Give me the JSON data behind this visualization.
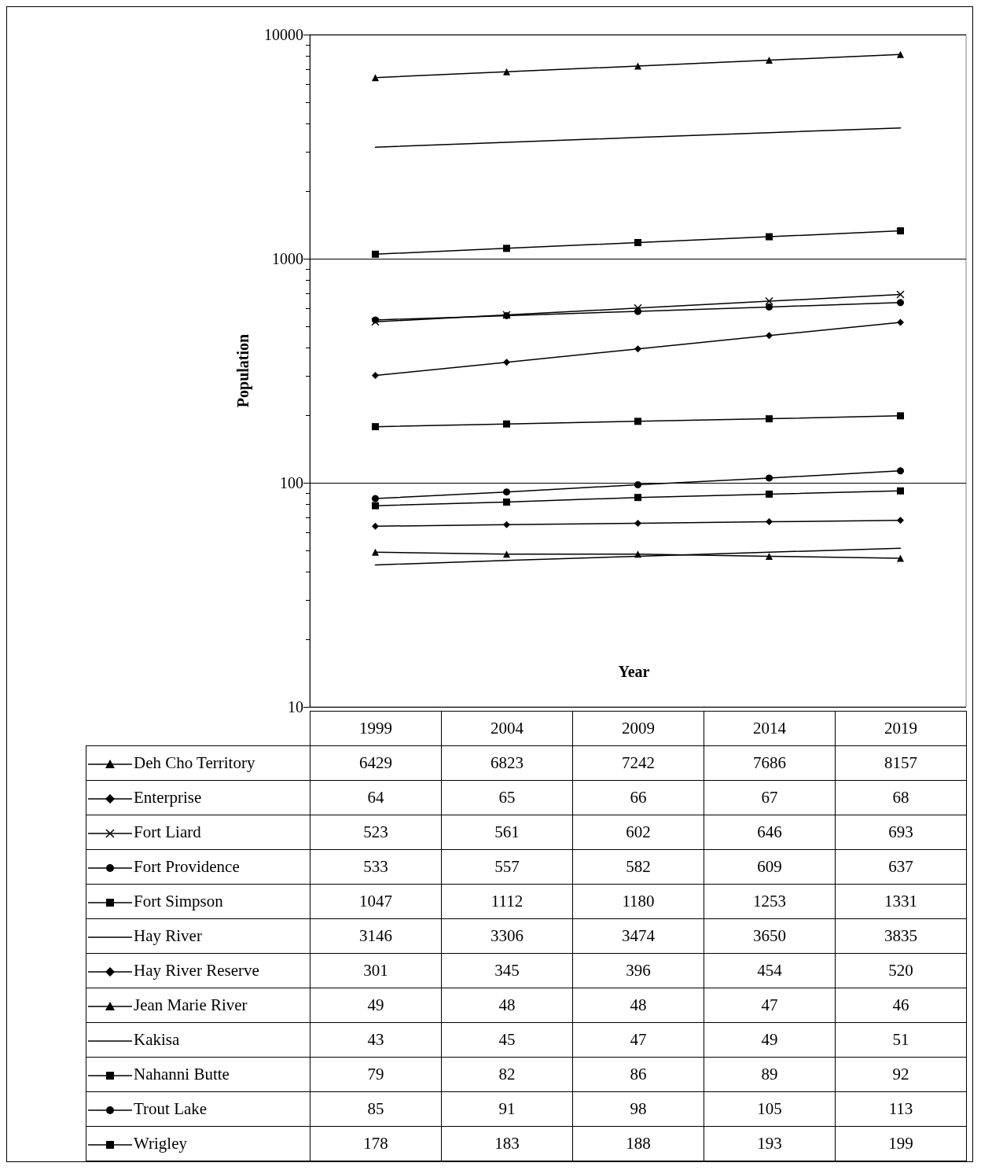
{
  "chart_data": {
    "type": "line",
    "xlabel": "Year",
    "ylabel": "Population",
    "categories": [
      "1999",
      "2004",
      "2009",
      "2014",
      "2019"
    ],
    "log": "y",
    "ylim": [
      10,
      10000
    ],
    "yticks": [
      10,
      100,
      1000,
      10000
    ],
    "grid": "y",
    "legend": "bottom",
    "data_labels": true,
    "series": [
      {
        "name": "Deh Cho Territory",
        "color": "#000000",
        "marker": "triangle",
        "values": [
          6429,
          6823,
          7242,
          7686,
          8157
        ]
      },
      {
        "name": "Enterprise",
        "color": "#000000",
        "marker": "diamond",
        "values": [
          64,
          65,
          66,
          67,
          68
        ]
      },
      {
        "name": "Fort Liard",
        "color": "#000000",
        "marker": "cross",
        "values": [
          523,
          561,
          602,
          646,
          693
        ]
      },
      {
        "name": "Fort Providence",
        "color": "#000000",
        "marker": "circle",
        "values": [
          533,
          557,
          582,
          609,
          637
        ]
      },
      {
        "name": "Fort Simpson",
        "color": "#000000",
        "marker": "square",
        "values": [
          1047,
          1112,
          1180,
          1253,
          1331
        ]
      },
      {
        "name": "Hay River",
        "color": "#000000",
        "marker": "none",
        "values": [
          3146,
          3306,
          3474,
          3650,
          3835
        ]
      },
      {
        "name": "Hay River Reserve",
        "color": "#000000",
        "marker": "diamond",
        "values": [
          301,
          345,
          396,
          454,
          520
        ]
      },
      {
        "name": "Jean Marie River",
        "color": "#000000",
        "marker": "triangle",
        "values": [
          49,
          48,
          48,
          47,
          46
        ]
      },
      {
        "name": "Kakisa",
        "color": "#000000",
        "marker": "none",
        "values": [
          43,
          45,
          47,
          49,
          51
        ]
      },
      {
        "name": "Nahanni Butte",
        "color": "#000000",
        "marker": "square",
        "values": [
          79,
          82,
          86,
          89,
          92
        ]
      },
      {
        "name": "Trout Lake",
        "color": "#000000",
        "marker": "circle",
        "values": [
          85,
          91,
          98,
          105,
          113
        ]
      },
      {
        "name": "Wrigley",
        "color": "#000000",
        "marker": "square",
        "values": [
          178,
          183,
          188,
          193,
          199
        ]
      }
    ]
  }
}
